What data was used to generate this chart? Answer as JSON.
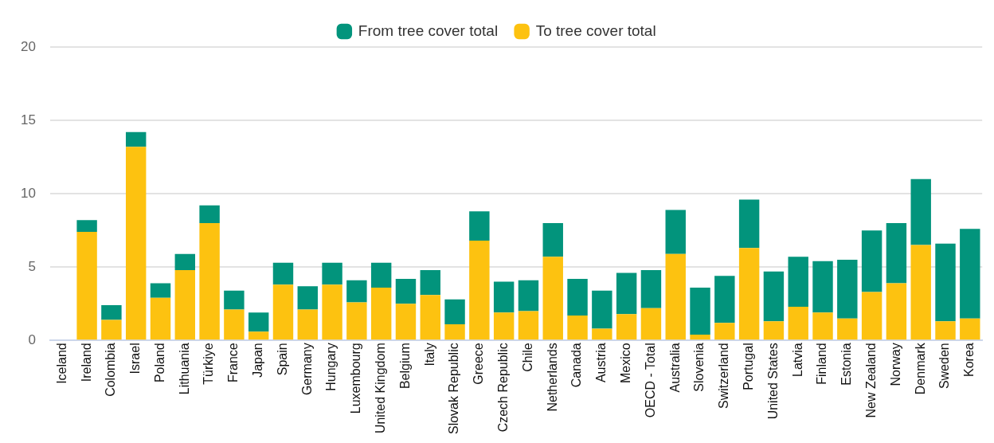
{
  "chart_data": {
    "type": "bar",
    "stacked": true,
    "categories": [
      "Iceland",
      "Ireland",
      "Colombia",
      "Israel",
      "Poland",
      "Lithuania",
      "Türkiye",
      "France",
      "Japan",
      "Spain",
      "Germany",
      "Hungary",
      "Luxembourg",
      "United Kingdom",
      "Belgium",
      "Italy",
      "Slovak Republic",
      "Greece",
      "Czech Republic",
      "Chile",
      "Netherlands",
      "Canada",
      "Austria",
      "Mexico",
      "OECD - Total",
      "Australia",
      "Slovenia",
      "Switzerland",
      "Portugal",
      "United States",
      "Latvia",
      "Finland",
      "Estonia",
      "New Zealand",
      "Norway",
      "Denmark",
      "Sweden",
      "Korea"
    ],
    "series": [
      {
        "name": "To tree cover total",
        "color": "#fdc210",
        "values": [
          0,
          7.4,
          1.4,
          13.2,
          2.9,
          4.8,
          8.0,
          2.1,
          0.6,
          3.8,
          2.1,
          3.8,
          2.6,
          3.6,
          2.5,
          3.1,
          1.1,
          6.8,
          1.9,
          2.0,
          5.7,
          1.7,
          0.8,
          1.8,
          2.2,
          5.9,
          0.4,
          1.2,
          6.3,
          1.3,
          2.3,
          1.9,
          1.5,
          3.3,
          3.9,
          6.5,
          1.3,
          1.5
        ]
      },
      {
        "name": "From tree cover total",
        "color": "#02947c",
        "values": [
          0,
          0.8,
          1.0,
          1.0,
          1.0,
          1.1,
          1.2,
          1.3,
          1.3,
          1.5,
          1.6,
          1.5,
          1.5,
          1.7,
          1.7,
          1.7,
          1.7,
          2.0,
          2.1,
          2.1,
          2.3,
          2.5,
          2.6,
          2.8,
          2.6,
          3.0,
          3.2,
          3.2,
          3.3,
          3.4,
          3.4,
          3.5,
          4.0,
          4.2,
          4.1,
          4.5,
          5.3,
          6.1
        ]
      }
    ],
    "ylim": [
      0,
      20
    ],
    "yticks": [
      0,
      5,
      10,
      15,
      20
    ],
    "grid": "y",
    "legend": "top"
  }
}
